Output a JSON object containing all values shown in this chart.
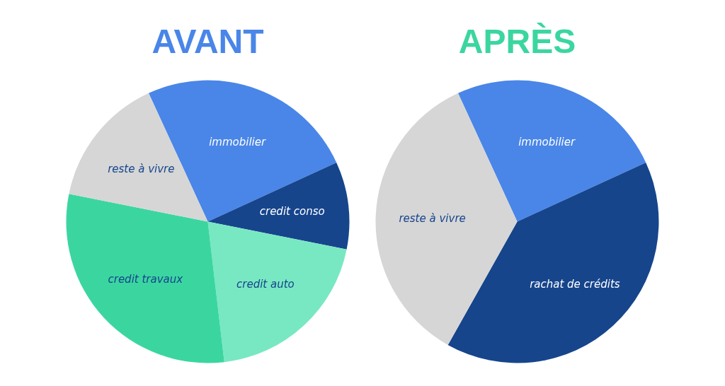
{
  "chart_data": [
    {
      "type": "pie",
      "title": "AVANT",
      "categories": [
        "immobilier",
        "credit conso",
        "credit auto",
        "credit travaux",
        "reste à vivre"
      ],
      "values": [
        25,
        10,
        20,
        30,
        15
      ],
      "colors": [
        "#4a86e8",
        "#16458c",
        "#78e8c2",
        "#3bd6a0",
        "#d6d6d6"
      ]
    },
    {
      "type": "pie",
      "title": "APRÈS",
      "categories": [
        "immobilier",
        "rachat de crédits",
        "reste à vivre"
      ],
      "values": [
        25,
        40,
        35
      ],
      "colors": [
        "#4a86e8",
        "#16458c",
        "#d6d6d6"
      ]
    }
  ]
}
